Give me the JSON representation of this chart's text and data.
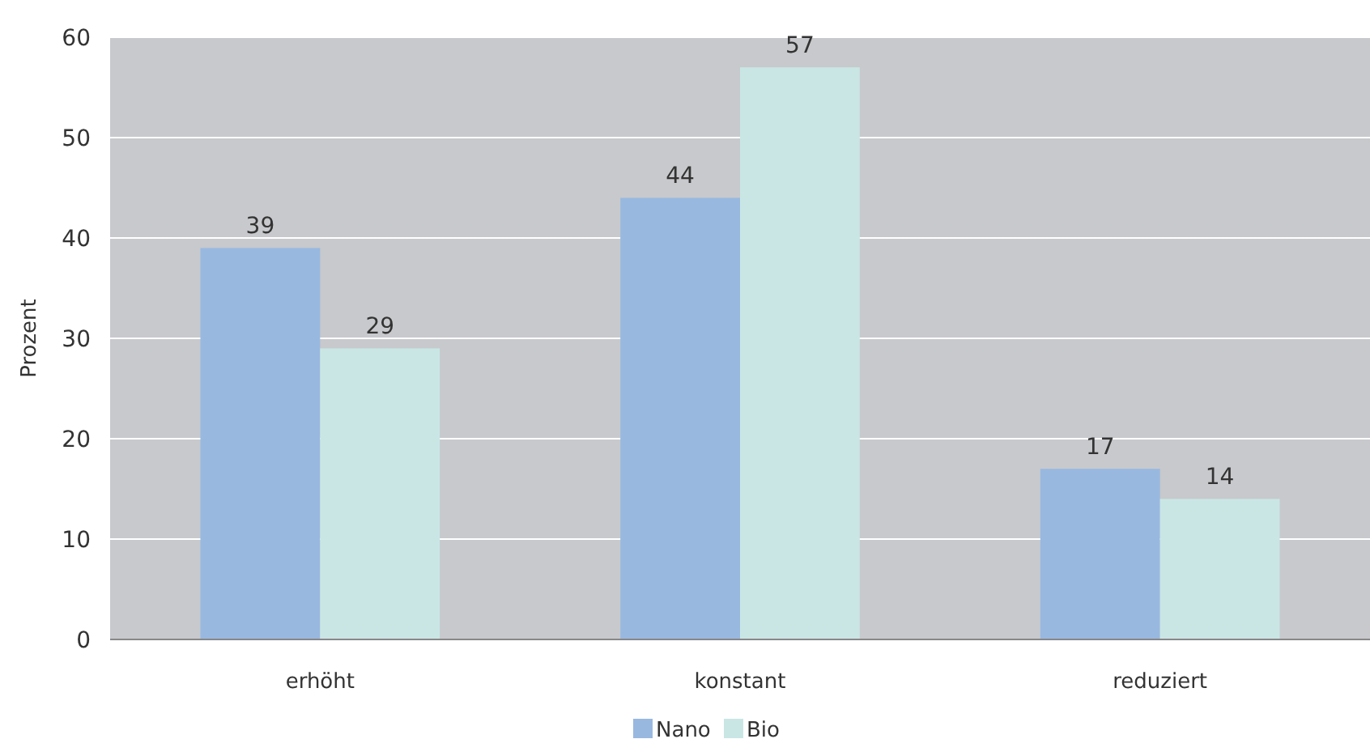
{
  "chart_data": {
    "type": "bar",
    "ylabel": "Prozent",
    "categories": [
      "erhöht",
      "konstant",
      "reduziert"
    ],
    "series": [
      {
        "name": "Nano",
        "color": "#98b8e0",
        "values": [
          39,
          44,
          17
        ]
      },
      {
        "name": "Bio",
        "color": "#c9e6e5",
        "values": [
          29,
          57,
          14
        ]
      }
    ],
    "ylim": [
      0,
      60
    ],
    "yticks": [
      0,
      10,
      20,
      30,
      40,
      50,
      60
    ],
    "grid": "y",
    "legend": "bottom",
    "data_labels": true
  }
}
